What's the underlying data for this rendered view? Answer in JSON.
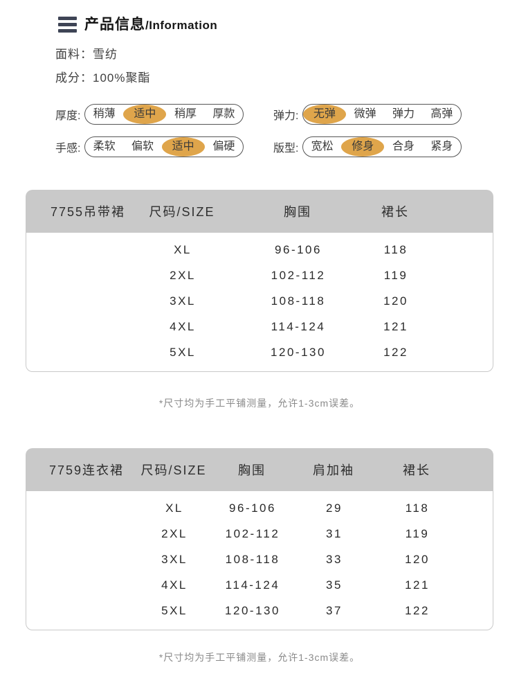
{
  "header": {
    "title_cjk": "产品信息",
    "title_en": "/Information",
    "menu_icon": "hamburger-icon"
  },
  "specs": [
    {
      "label": "面料：",
      "value": "雪纺"
    },
    {
      "label": "成分：",
      "value": "100%聚酯"
    }
  ],
  "attributes": [
    {
      "label": "厚度:",
      "options": [
        "稍薄",
        "适中",
        "稍厚",
        "厚款"
      ],
      "selected_index": 1
    },
    {
      "label": "弹力:",
      "options": [
        "无弹",
        "微弹",
        "弹力",
        "高弹"
      ],
      "selected_index": 0
    },
    {
      "label": "手感:",
      "options": [
        "柔软",
        "偏软",
        "适中",
        "偏硬"
      ],
      "selected_index": 2
    },
    {
      "label": "版型:",
      "options": [
        "宽松",
        "修身",
        "合身",
        "紧身"
      ],
      "selected_index": 1
    }
  ],
  "tables": [
    {
      "product": "7755吊带裙",
      "columns": [
        "尺码/SIZE",
        "胸围",
        "裙长"
      ],
      "rows": [
        [
          "XL",
          "96-106",
          "118"
        ],
        [
          "2XL",
          "102-112",
          "119"
        ],
        [
          "3XL",
          "108-118",
          "120"
        ],
        [
          "4XL",
          "114-124",
          "121"
        ],
        [
          "5XL",
          "120-130",
          "122"
        ]
      ],
      "note": "*尺寸均为手工平铺测量，允许1-3cm误差。"
    },
    {
      "product": "7759连衣裙",
      "columns": [
        "尺码/SIZE",
        "胸围",
        "肩加袖",
        "裙长"
      ],
      "rows": [
        [
          "XL",
          "96-106",
          "29",
          "118"
        ],
        [
          "2XL",
          "102-112",
          "31",
          "119"
        ],
        [
          "3XL",
          "108-118",
          "33",
          "120"
        ],
        [
          "4XL",
          "114-124",
          "35",
          "121"
        ],
        [
          "5XL",
          "120-130",
          "37",
          "122"
        ]
      ],
      "note": "*尺寸均为手工平铺测量，允许1-3cm误差。"
    }
  ],
  "colors": {
    "accent": "#dfa54b",
    "table_header_bg": "#c9c9c9",
    "icon": "#3e4455",
    "note_text": "#8a8a8a"
  }
}
